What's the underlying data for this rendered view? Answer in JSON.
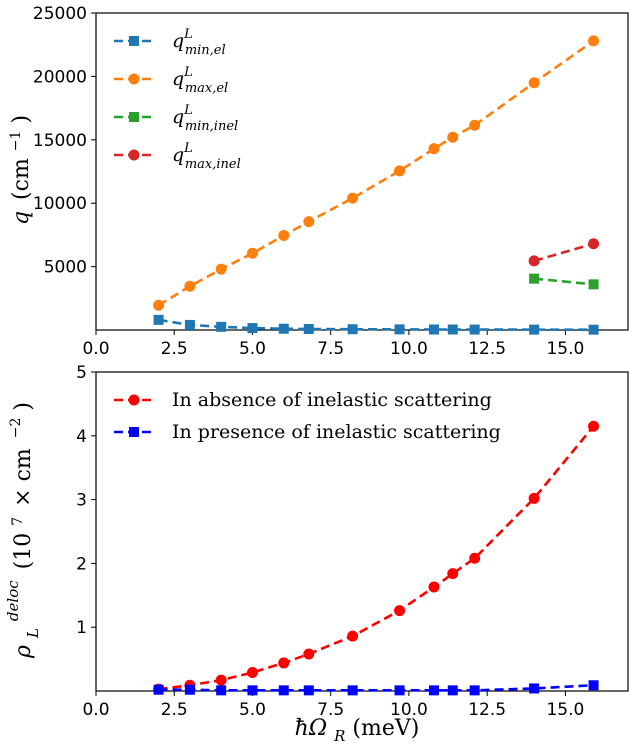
{
  "chart_data": [
    {
      "type": "line",
      "ylabel_var": "q",
      "ylabel_unit": "(cm",
      "ylabel_exp": "−1",
      "ylabel_close": ")",
      "xlim": [
        0.0,
        17.0
      ],
      "ylim": [
        0,
        25000
      ],
      "xticks": [
        "0.0",
        "2.5",
        "5.0",
        "7.5",
        "10.0",
        "12.5",
        "15.0"
      ],
      "xtick_values": [
        0,
        2.5,
        5,
        7.5,
        10,
        12.5,
        15
      ],
      "yticks": [
        "5000",
        "10000",
        "15000",
        "20000",
        "25000"
      ],
      "ytick_values": [
        5000,
        10000,
        15000,
        20000,
        25000
      ],
      "legend_position": "upper-left",
      "series": [
        {
          "var": "q",
          "sup": "L",
          "sub": "min,el",
          "color": "#1f77b4",
          "marker": "square",
          "x": [
            2.0,
            3.0,
            4.0,
            5.0,
            6.0,
            6.8,
            8.2,
            9.7,
            10.8,
            11.4,
            12.1,
            14.0,
            15.9
          ],
          "y": [
            800,
            400,
            250,
            150,
            100,
            80,
            60,
            50,
            40,
            40,
            35,
            30,
            25
          ]
        },
        {
          "var": "q",
          "sup": "L",
          "sub": "max,el",
          "color": "#ff7f0e",
          "marker": "circle",
          "x": [
            2.0,
            3.0,
            4.0,
            5.0,
            6.0,
            6.8,
            8.2,
            9.7,
            10.8,
            11.4,
            12.1,
            14.0,
            15.9
          ],
          "y": [
            1950,
            3450,
            4800,
            6050,
            7450,
            8550,
            10400,
            12550,
            14300,
            15200,
            16150,
            19500,
            22800
          ]
        },
        {
          "var": "q",
          "sup": "L",
          "sub": "min,inel",
          "color": "#2ca02c",
          "marker": "square",
          "x": [
            14.0,
            15.9
          ],
          "y": [
            4050,
            3600
          ]
        },
        {
          "var": "q",
          "sup": "L",
          "sub": "max,inel",
          "color": "#d62728",
          "marker": "circle",
          "x": [
            14.0,
            15.9
          ],
          "y": [
            5450,
            6800
          ]
        }
      ]
    },
    {
      "type": "line",
      "xlabel_main": "ħΩ",
      "xlabel_sub": "R",
      "xlabel_unit": " (meV)",
      "ylabel_var": "ρ",
      "ylabel_sub": "L",
      "ylabel_sup": "deloc",
      "ylabel_unit": "(10",
      "ylabel_unit_exp": "7",
      "ylabel_unit_mid": "× cm",
      "ylabel_unit_exp2": "−2",
      "ylabel_close": ")",
      "xlim": [
        0.0,
        17.0
      ],
      "ylim": [
        0,
        5
      ],
      "xticks": [
        "0.0",
        "2.5",
        "5.0",
        "7.5",
        "10.0",
        "12.5",
        "15.0"
      ],
      "xtick_values": [
        0,
        2.5,
        5,
        7.5,
        10,
        12.5,
        15
      ],
      "yticks": [
        "1",
        "2",
        "3",
        "4",
        "5"
      ],
      "ytick_values": [
        1,
        2,
        3,
        4,
        5
      ],
      "legend_position": "upper-left",
      "series": [
        {
          "name": "In absence of inelastic scattering",
          "color": "#ff0000",
          "marker": "circle",
          "x": [
            2.0,
            3.0,
            4.0,
            5.0,
            6.0,
            6.8,
            8.2,
            9.7,
            10.8,
            11.4,
            12.1,
            14.0,
            15.9
          ],
          "y": [
            0.03,
            0.09,
            0.17,
            0.29,
            0.44,
            0.58,
            0.86,
            1.26,
            1.63,
            1.84,
            2.08,
            3.02,
            4.15
          ]
        },
        {
          "name": "In presence of inelastic scattering",
          "color": "#0000ff",
          "marker": "square",
          "x": [
            2.0,
            3.0,
            4.0,
            5.0,
            6.0,
            6.8,
            8.2,
            9.7,
            10.8,
            11.4,
            12.1,
            14.0,
            15.9
          ],
          "y": [
            0.02,
            0.02,
            0.01,
            0.01,
            0.01,
            0.01,
            0.01,
            0.01,
            0.01,
            0.01,
            0.01,
            0.04,
            0.09
          ]
        }
      ]
    }
  ]
}
